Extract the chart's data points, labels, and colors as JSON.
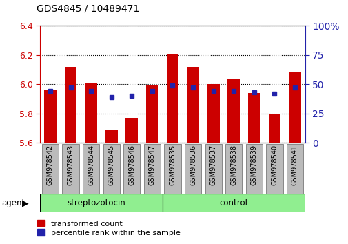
{
  "title": "GDS4845 / 10489471",
  "samples": [
    "GSM978542",
    "GSM978543",
    "GSM978544",
    "GSM978545",
    "GSM978546",
    "GSM978547",
    "GSM978535",
    "GSM978536",
    "GSM978537",
    "GSM978538",
    "GSM978539",
    "GSM978540",
    "GSM978541"
  ],
  "red_values": [
    5.96,
    6.12,
    6.01,
    5.69,
    5.77,
    5.99,
    6.21,
    6.12,
    6.0,
    6.04,
    5.94,
    5.8,
    6.08
  ],
  "blue_values": [
    5.955,
    5.975,
    5.953,
    5.912,
    5.922,
    5.954,
    5.99,
    5.975,
    5.953,
    5.953,
    5.944,
    5.934,
    5.975
  ],
  "base": 5.6,
  "ylim_left": [
    5.6,
    6.4
  ],
  "ylim_right": [
    0,
    100
  ],
  "right_ticks": [
    0,
    25,
    50,
    75,
    100
  ],
  "right_tick_labels": [
    "0",
    "25",
    "50",
    "75",
    "100%"
  ],
  "left_ticks": [
    5.6,
    5.8,
    6.0,
    6.2,
    6.4
  ],
  "bar_color": "#CC0000",
  "dot_color": "#2222AA",
  "bar_width": 0.6,
  "title_fontsize": 10,
  "separator_index": 6,
  "streptozotocin_label": "streptozotocin",
  "control_label": "control",
  "agent_label": "agent",
  "legend_label_red": "transformed count",
  "legend_label_blue": "percentile rank within the sample",
  "group_bg_color": "#90EE90",
  "xtick_bg_color": "#BBBBBB",
  "left_color": "#CC0000",
  "right_color": "#2222AA"
}
